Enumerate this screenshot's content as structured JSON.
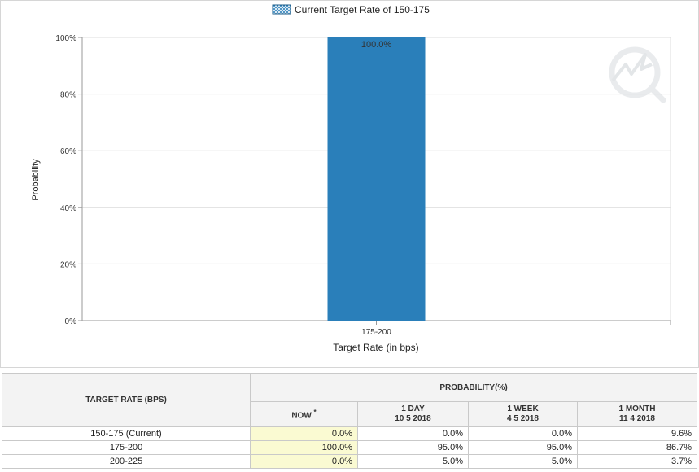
{
  "chart_data": {
    "type": "bar",
    "legend": {
      "label": "Current Target Rate of 150-175",
      "placement": "top-center"
    },
    "categories": [
      "175-200"
    ],
    "values": [
      100.0
    ],
    "data_labels": [
      "100.0%"
    ],
    "xlabel": "Target Rate (in bps)",
    "ylabel": "Probability",
    "ylim": [
      0,
      100
    ],
    "yticks": [
      0,
      20,
      40,
      60,
      80,
      100
    ],
    "ytick_labels": [
      "0%",
      "20%",
      "40%",
      "60%",
      "80%",
      "100%"
    ],
    "grid": true,
    "bar_color": "#2a7fba"
  },
  "table": {
    "col_target": "TARGET RATE (BPS)",
    "col_group": "PROBABILITY(%)",
    "col_now": "NOW",
    "col_now_mark": "*",
    "col_day_label": "1 DAY",
    "col_day_date": "10 5 2018",
    "col_week_label": "1 WEEK",
    "col_week_date": "4 5 2018",
    "col_month_label": "1 MONTH",
    "col_month_date": "11 4 2018",
    "rows": [
      {
        "rate": "150-175 (Current)",
        "now": "0.0%",
        "day": "0.0%",
        "week": "0.0%",
        "month": "9.6%"
      },
      {
        "rate": "175-200",
        "now": "100.0%",
        "day": "95.0%",
        "week": "95.0%",
        "month": "86.7%"
      },
      {
        "rate": "200-225",
        "now": "0.0%",
        "day": "5.0%",
        "week": "5.0%",
        "month": "3.7%"
      }
    ]
  }
}
